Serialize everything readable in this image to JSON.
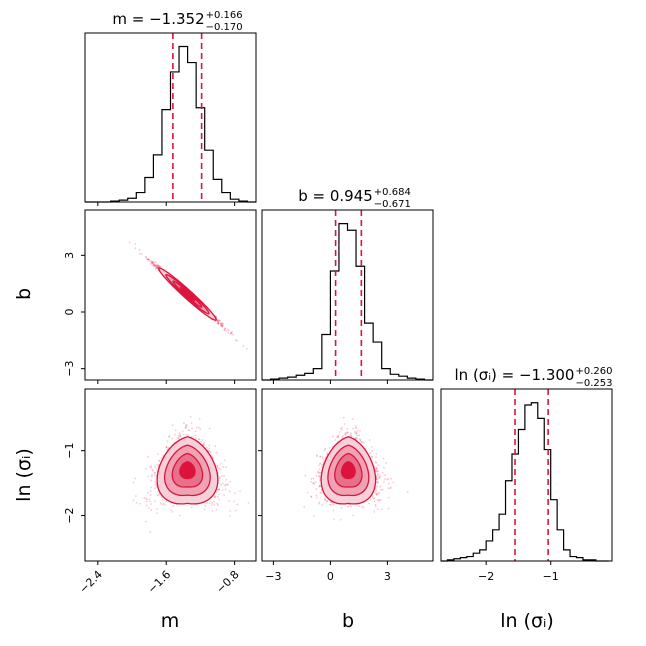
{
  "chart_data": {
    "type": "corner",
    "color": "#dc143c",
    "parameters": [
      {
        "key": "m",
        "label": "m",
        "title": {
          "name": "m",
          "median": "−1.352",
          "plus": "+0.166",
          "minus": "−0.170"
        },
        "range": [
          -2.55,
          -0.55
        ],
        "ticks": [
          -2.4,
          -1.6,
          -0.8
        ],
        "tick_labels": [
          "−2.4",
          "−1.6",
          "−0.8"
        ],
        "median": -1.352,
        "q16": -1.522,
        "q84": -1.186,
        "hist_edges": [
          -2.55,
          -2.45,
          -2.35,
          -2.25,
          -2.15,
          -2.05,
          -1.95,
          -1.85,
          -1.75,
          -1.65,
          -1.55,
          -1.45,
          -1.35,
          -1.25,
          -1.15,
          -1.05,
          -0.95,
          -0.85,
          -0.75,
          -0.65,
          -0.55
        ],
        "hist_counts": [
          0,
          0,
          0,
          1,
          2,
          4,
          10,
          26,
          50,
          98,
          138,
          165,
          148,
          100,
          55,
          24,
          10,
          3,
          1,
          0
        ]
      },
      {
        "key": "b",
        "label": "b",
        "title": {
          "name": "b",
          "median": "0.945",
          "plus": "+0.684",
          "minus": "−0.671"
        },
        "range": [
          -3.6,
          5.4
        ],
        "ticks": [
          -3,
          0,
          3
        ],
        "tick_labels": [
          "−3",
          "0",
          "3"
        ],
        "median": 0.945,
        "q16": 0.274,
        "q84": 1.629,
        "hist_edges": [
          -3.6,
          -3.15,
          -2.7,
          -2.25,
          -1.8,
          -1.35,
          -0.9,
          -0.45,
          0.0,
          0.45,
          0.9,
          1.35,
          1.8,
          2.25,
          2.7,
          3.15,
          3.6,
          4.05,
          4.5,
          4.95,
          5.4
        ],
        "hist_counts": [
          0,
          1,
          2,
          3,
          5,
          7,
          12,
          48,
          115,
          165,
          158,
          120,
          60,
          40,
          12,
          6,
          4,
          2,
          1,
          0
        ]
      },
      {
        "key": "ln_sigma",
        "label": "ln (σᵢ)",
        "title": {
          "name": "ln (σᵢ)",
          "median": "−1.300",
          "plus": "+0.260",
          "minus": "−0.253"
        },
        "range": [
          -2.7,
          -0.05
        ],
        "ticks": [
          -2,
          -1
        ],
        "tick_labels": [
          "−2",
          "−1"
        ],
        "median": -1.3,
        "q16": -1.553,
        "q84": -1.04,
        "hist_edges": [
          -2.7,
          -2.6,
          -2.5,
          -2.4,
          -2.3,
          -2.2,
          -2.1,
          -2.0,
          -1.9,
          -1.8,
          -1.7,
          -1.6,
          -1.5,
          -1.4,
          -1.3,
          -1.2,
          -1.1,
          -1.0,
          -0.9,
          -0.8,
          -0.7,
          -0.6,
          -0.5,
          -0.4,
          -0.3,
          -0.2,
          -0.1
        ],
        "hist_counts": [
          0,
          1,
          2,
          3,
          4,
          7,
          10,
          18,
          28,
          42,
          72,
          96,
          118,
          140,
          142,
          128,
          100,
          55,
          28,
          10,
          4,
          3,
          1,
          1,
          0,
          0
        ]
      }
    ],
    "density_levels": [
      "0.5σ",
      "1σ",
      "1.5σ",
      "2σ"
    ],
    "grid": false
  }
}
